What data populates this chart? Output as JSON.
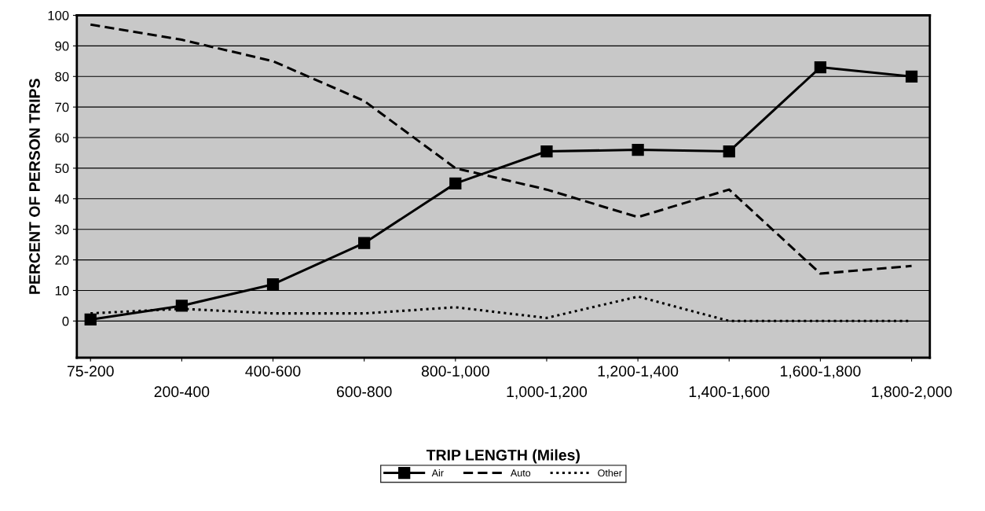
{
  "chart_data": {
    "type": "line",
    "xlabel": "TRIP LENGTH (Miles)",
    "ylabel": "PERCENT OF PERSON TRIPS",
    "categories": [
      "75-200",
      "200-400",
      "400-600",
      "600-800",
      "800-1,000",
      "1,000-1,200",
      "1,200-1,400",
      "1,400-1,600",
      "1,600-1,800",
      "1,800-2,000"
    ],
    "series": [
      {
        "name": "Air",
        "color": "#000000",
        "marker": "square",
        "line_style": "solid",
        "values": [
          0.5,
          5,
          12,
          25.5,
          45,
          55.5,
          56,
          55.5,
          83,
          80
        ]
      },
      {
        "name": "Auto",
        "color": "#000000",
        "marker": "none",
        "line_style": "dashed",
        "values": [
          97,
          92,
          85,
          72,
          50,
          43,
          34,
          43,
          15.5,
          18
        ]
      },
      {
        "name": "Other",
        "color": "#000000",
        "marker": "none",
        "line_style": "dotted",
        "values": [
          2.5,
          4,
          2.5,
          2.5,
          4.5,
          1,
          8,
          0,
          0,
          0
        ]
      }
    ],
    "ylim": [
      -12,
      100
    ],
    "yticks": [
      0,
      10,
      20,
      30,
      40,
      50,
      60,
      70,
      80,
      90,
      100
    ],
    "grid": "y",
    "legend": "bottom"
  }
}
